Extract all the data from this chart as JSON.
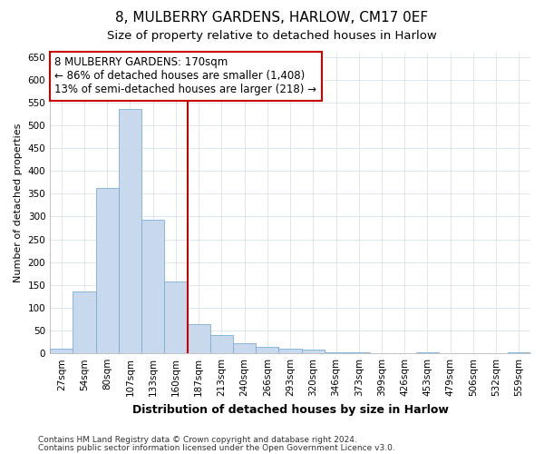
{
  "title1": "8, MULBERRY GARDENS, HARLOW, CM17 0EF",
  "title2": "Size of property relative to detached houses in Harlow",
  "xlabel": "Distribution of detached houses by size in Harlow",
  "ylabel": "Number of detached properties",
  "categories": [
    "27sqm",
    "54sqm",
    "80sqm",
    "107sqm",
    "133sqm",
    "160sqm",
    "187sqm",
    "213sqm",
    "240sqm",
    "266sqm",
    "293sqm",
    "320sqm",
    "346sqm",
    "373sqm",
    "399sqm",
    "426sqm",
    "453sqm",
    "479sqm",
    "506sqm",
    "532sqm",
    "559sqm"
  ],
  "values": [
    10,
    135,
    362,
    535,
    293,
    158,
    65,
    40,
    22,
    15,
    10,
    8,
    3,
    2,
    1,
    0,
    2,
    0,
    0,
    0,
    2
  ],
  "bar_color": "#c8d8ed",
  "bar_edge_color": "#7aafd6",
  "vline_color": "#cc0000",
  "annotation_text": "8 MULBERRY GARDENS: 170sqm\n← 86% of detached houses are smaller (1,408)\n13% of semi-detached houses are larger (218) →",
  "annotation_box_facecolor": "#ffffff",
  "annotation_box_edgecolor": "#cc0000",
  "background_color": "#ffffff",
  "ylim": [
    0,
    660
  ],
  "yticks": [
    0,
    50,
    100,
    150,
    200,
    250,
    300,
    350,
    400,
    450,
    500,
    550,
    600,
    650
  ],
  "footer1": "Contains HM Land Registry data © Crown copyright and database right 2024.",
  "footer2": "Contains public sector information licensed under the Open Government Licence v3.0.",
  "title1_fontsize": 11,
  "title2_fontsize": 9.5,
  "xlabel_fontsize": 9,
  "ylabel_fontsize": 8,
  "tick_fontsize": 7.5,
  "annotation_fontsize": 8.5,
  "footer_fontsize": 6.5
}
